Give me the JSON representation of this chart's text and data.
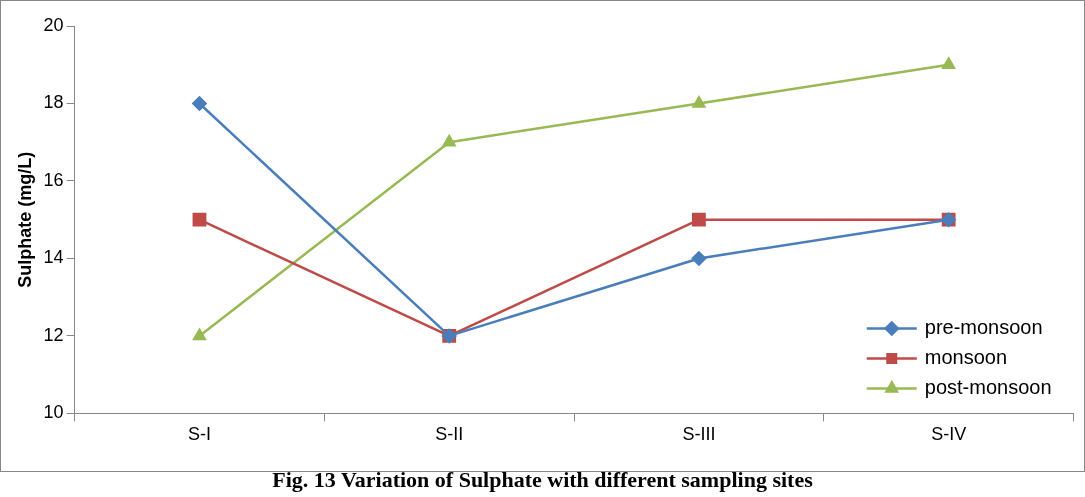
{
  "chart_data": {
    "type": "line",
    "title": "Fig. 13 Variation of Sulphate with different sampling sites",
    "ylabel": "Sulphate (mg/L)",
    "categories": [
      "S-I",
      "S-II",
      "S-III",
      "S-IV"
    ],
    "series": [
      {
        "name": "pre-monsoon",
        "color": "#4a7ebb",
        "marker": "diamond",
        "values": [
          18,
          12,
          14,
          15
        ]
      },
      {
        "name": "monsoon",
        "color": "#be4b48",
        "marker": "square",
        "values": [
          15,
          12,
          15,
          15
        ]
      },
      {
        "name": "post-monsoon",
        "color": "#98b954",
        "marker": "triangle",
        "values": [
          12,
          17,
          18,
          19
        ]
      }
    ],
    "ylim": [
      10,
      20
    ],
    "yticks": [
      10,
      12,
      14,
      16,
      18,
      20
    ],
    "grid": false,
    "legend": "bottom right",
    "line_style": "solid"
  }
}
